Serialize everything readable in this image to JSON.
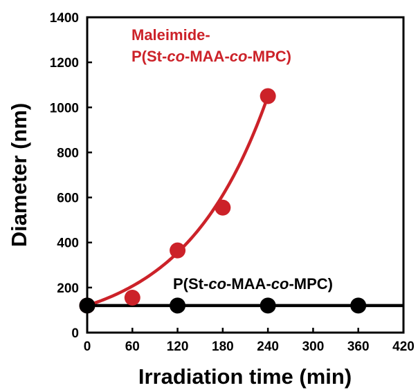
{
  "colors": {
    "red": "#cc2229",
    "black": "#000000"
  },
  "chart_data": {
    "type": "scatter",
    "title": "",
    "xlabel": "Irradiation time (min)",
    "ylabel": "Diameter (nm)",
    "xlim": [
      0,
      420
    ],
    "ylim": [
      0,
      1400
    ],
    "xticks": [
      0,
      60,
      120,
      180,
      240,
      300,
      360,
      420
    ],
    "yticks": [
      0,
      200,
      400,
      600,
      800,
      1000,
      1200,
      1400
    ],
    "grid": false,
    "series": [
      {
        "label_segments": [
          [
            {
              "text": "Maleimide-",
              "italic": false
            }
          ],
          [
            {
              "text": "P(St-",
              "italic": false
            },
            {
              "text": "co",
              "italic": true
            },
            {
              "text": "-MAA-",
              "italic": false
            },
            {
              "text": "co",
              "italic": true
            },
            {
              "text": "-MPC)",
              "italic": false
            }
          ]
        ],
        "color": "#cc2229",
        "x": [
          0,
          60,
          120,
          180,
          240
        ],
        "y": [
          120,
          155,
          365,
          555,
          1050
        ],
        "fit": "exponential"
      },
      {
        "label_segments": [
          [
            {
              "text": "P(St-",
              "italic": false
            },
            {
              "text": "co",
              "italic": true
            },
            {
              "text": "-MAA-",
              "italic": false
            },
            {
              "text": "co",
              "italic": true
            },
            {
              "text": "-MPC)",
              "italic": false
            }
          ]
        ],
        "color": "#000000",
        "x": [
          0,
          120,
          240,
          360
        ],
        "y": [
          120,
          120,
          120,
          120
        ],
        "fit": "constant"
      }
    ]
  }
}
